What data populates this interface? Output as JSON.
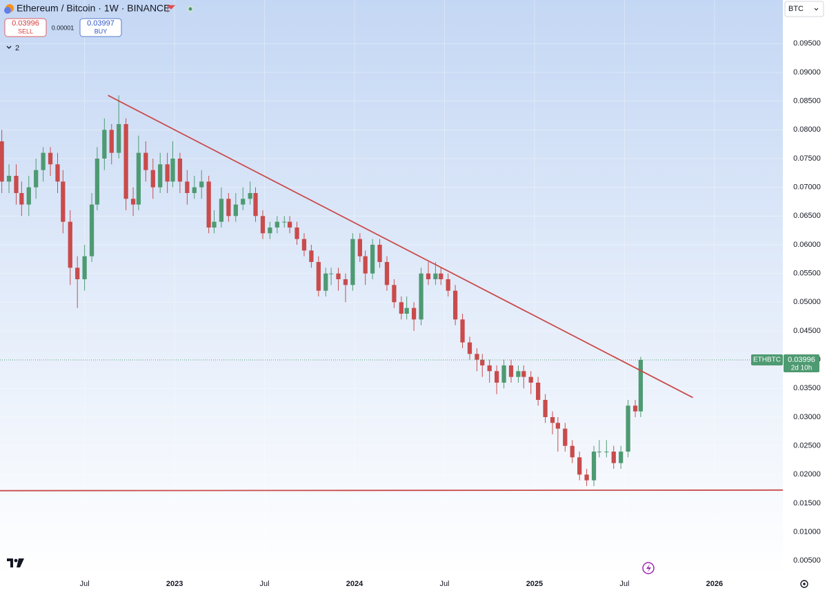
{
  "chart_data": {
    "type": "candlestick",
    "title": "Ethereum / Bitcoin · 1W · BINANCE",
    "currency": "BTC",
    "indicators_count": 2,
    "sell": {
      "price": 0.03996,
      "label": "SELL"
    },
    "spread": 1e-05,
    "buy": {
      "price": 0.03997,
      "label": "BUY"
    },
    "last_price_label": {
      "symbol": "ETHBTC",
      "price": 0.03996,
      "countdown": "2d 10h"
    },
    "up_color": "#4e9a72",
    "down_color": "#c94b4b",
    "x": [
      2022.04,
      2022.08,
      2022.12,
      2022.15,
      2022.19,
      2022.23,
      2022.27,
      2022.31,
      2022.35,
      2022.38,
      2022.42,
      2022.46,
      2022.5,
      2022.54,
      2022.57,
      2022.61,
      2022.65,
      2022.69,
      2022.73,
      2022.77,
      2022.8,
      2022.84,
      2022.88,
      2022.92,
      2022.96,
      2022.99,
      2023.03,
      2023.07,
      2023.11,
      2023.15,
      2023.19,
      2023.22,
      2023.26,
      2023.3,
      2023.34,
      2023.38,
      2023.42,
      2023.45,
      2023.49,
      2023.53,
      2023.57,
      2023.61,
      2023.64,
      2023.68,
      2023.72,
      2023.76,
      2023.8,
      2023.84,
      2023.87,
      2023.91,
      2023.95,
      2023.99,
      2024.03,
      2024.06,
      2024.1,
      2024.14,
      2024.18,
      2024.22,
      2024.26,
      2024.29,
      2024.33,
      2024.37,
      2024.41,
      2024.45,
      2024.48,
      2024.52,
      2024.56,
      2024.6,
      2024.64,
      2024.68,
      2024.71,
      2024.75,
      2024.79,
      2024.83,
      2024.87,
      2024.91,
      2024.94,
      2024.98,
      2025.02,
      2025.06,
      2025.1,
      2025.13,
      2025.17,
      2025.21,
      2025.25,
      2025.29,
      2025.33,
      2025.36,
      2025.4,
      2025.44,
      2025.48,
      2025.52,
      2025.56,
      2025.59
    ],
    "open": [
      0.078,
      0.071,
      0.072,
      0.069,
      0.067,
      0.07,
      0.073,
      0.076,
      0.074,
      0.071,
      0.064,
      0.056,
      0.054,
      0.058,
      0.067,
      0.075,
      0.08,
      0.076,
      0.081,
      0.068,
      0.067,
      0.076,
      0.073,
      0.07,
      0.074,
      0.071,
      0.075,
      0.071,
      0.069,
      0.07,
      0.071,
      0.063,
      0.064,
      0.068,
      0.065,
      0.067,
      0.068,
      0.069,
      0.065,
      0.062,
      0.063,
      0.064,
      0.064,
      0.063,
      0.061,
      0.059,
      0.057,
      0.052,
      0.055,
      0.055,
      0.054,
      0.053,
      0.061,
      0.058,
      0.055,
      0.06,
      0.057,
      0.053,
      0.05,
      0.048,
      0.049,
      0.047,
      0.055,
      0.054,
      0.055,
      0.054,
      0.052,
      0.047,
      0.043,
      0.041,
      0.04,
      0.039,
      0.038,
      0.036,
      0.039,
      0.037,
      0.038,
      0.037,
      0.036,
      0.033,
      0.03,
      0.029,
      0.028,
      0.025,
      0.023,
      0.02,
      0.019,
      0.024,
      0.024,
      0.024,
      0.022,
      0.024,
      0.032,
      0.031
    ],
    "high": [
      0.08,
      0.074,
      0.074,
      0.071,
      0.072,
      0.075,
      0.077,
      0.077,
      0.076,
      0.073,
      0.066,
      0.058,
      0.06,
      0.069,
      0.077,
      0.082,
      0.081,
      0.086,
      0.082,
      0.07,
      0.079,
      0.078,
      0.075,
      0.076,
      0.076,
      0.078,
      0.076,
      0.073,
      0.072,
      0.073,
      0.072,
      0.066,
      0.07,
      0.069,
      0.069,
      0.07,
      0.071,
      0.07,
      0.066,
      0.064,
      0.065,
      0.065,
      0.065,
      0.064,
      0.062,
      0.06,
      0.058,
      0.056,
      0.056,
      0.056,
      0.055,
      0.062,
      0.062,
      0.059,
      0.061,
      0.061,
      0.058,
      0.054,
      0.051,
      0.051,
      0.05,
      0.056,
      0.057,
      0.057,
      0.056,
      0.055,
      0.053,
      0.048,
      0.044,
      0.042,
      0.041,
      0.04,
      0.039,
      0.04,
      0.04,
      0.039,
      0.039,
      0.038,
      0.037,
      0.034,
      0.031,
      0.03,
      0.029,
      0.026,
      0.024,
      0.021,
      0.025,
      0.026,
      0.026,
      0.025,
      0.025,
      0.033,
      0.033,
      0.0405
    ],
    "low": [
      0.069,
      0.069,
      0.067,
      0.065,
      0.065,
      0.068,
      0.071,
      0.072,
      0.069,
      0.062,
      0.053,
      0.049,
      0.052,
      0.057,
      0.066,
      0.073,
      0.074,
      0.075,
      0.066,
      0.065,
      0.066,
      0.071,
      0.068,
      0.069,
      0.069,
      0.07,
      0.069,
      0.067,
      0.068,
      0.068,
      0.062,
      0.062,
      0.063,
      0.064,
      0.064,
      0.066,
      0.067,
      0.064,
      0.061,
      0.061,
      0.062,
      0.063,
      0.062,
      0.06,
      0.058,
      0.056,
      0.051,
      0.051,
      0.053,
      0.052,
      0.05,
      0.052,
      0.057,
      0.053,
      0.054,
      0.056,
      0.052,
      0.049,
      0.047,
      0.047,
      0.045,
      0.046,
      0.053,
      0.053,
      0.053,
      0.051,
      0.046,
      0.042,
      0.04,
      0.038,
      0.037,
      0.036,
      0.034,
      0.035,
      0.036,
      0.036,
      0.035,
      0.034,
      0.032,
      0.029,
      0.027,
      0.024,
      0.024,
      0.022,
      0.019,
      0.018,
      0.018,
      0.023,
      0.023,
      0.021,
      0.021,
      0.023,
      0.03,
      0.03
    ],
    "close": [
      0.071,
      0.072,
      0.069,
      0.067,
      0.07,
      0.073,
      0.076,
      0.074,
      0.071,
      0.064,
      0.056,
      0.054,
      0.058,
      0.067,
      0.075,
      0.08,
      0.076,
      0.081,
      0.068,
      0.067,
      0.076,
      0.073,
      0.07,
      0.074,
      0.071,
      0.075,
      0.071,
      0.069,
      0.07,
      0.071,
      0.063,
      0.064,
      0.068,
      0.065,
      0.067,
      0.068,
      0.069,
      0.065,
      0.062,
      0.063,
      0.064,
      0.064,
      0.063,
      0.061,
      0.059,
      0.057,
      0.052,
      0.055,
      0.055,
      0.054,
      0.053,
      0.061,
      0.058,
      0.055,
      0.06,
      0.057,
      0.053,
      0.05,
      0.048,
      0.049,
      0.047,
      0.055,
      0.054,
      0.055,
      0.054,
      0.052,
      0.047,
      0.043,
      0.041,
      0.04,
      0.039,
      0.038,
      0.036,
      0.039,
      0.037,
      0.038,
      0.037,
      0.036,
      0.033,
      0.03,
      0.029,
      0.028,
      0.025,
      0.023,
      0.02,
      0.019,
      0.024,
      0.024,
      0.024,
      0.022,
      0.024,
      0.032,
      0.031,
      0.03996
    ],
    "trendlines": [
      {
        "x": [
          2022.63,
          2025.88
        ],
        "y": [
          0.086,
          0.0334
        ],
        "color": "#c94b4b"
      },
      {
        "x": [
          2022.03,
          2026.38
        ],
        "y": [
          0.0172,
          0.0173
        ],
        "color": "#c94b4b"
      }
    ],
    "xlim": [
      2022.03,
      2026.38
    ],
    "xticks": [
      {
        "value": 2022.5,
        "label": "Jul"
      },
      2023,
      {
        "value": 2023.5,
        "label": "Jul"
      },
      2024,
      {
        "value": 2024.5,
        "label": "Jul"
      },
      2025,
      {
        "value": 2025.5,
        "label": "Jul"
      },
      2026
    ],
    "ylim": [
      0.0024,
      0.1026
    ],
    "yticks": [
      {
        "value": 0.005,
        "label": "0.00500"
      },
      {
        "value": 0.01,
        "label": "0.01000"
      },
      {
        "value": 0.015,
        "label": "0.01500"
      },
      {
        "value": 0.02,
        "label": "0.02000"
      },
      {
        "value": 0.025,
        "label": "0.02500"
      },
      {
        "value": 0.03,
        "label": "0.03000"
      },
      {
        "value": 0.035,
        "label": "0.03500"
      },
      {
        "value": 0.04,
        "label": "0.04000"
      },
      {
        "value": 0.045,
        "label": "0.04500"
      },
      {
        "value": 0.05,
        "label": "0.05000"
      },
      {
        "value": 0.055,
        "label": "0.05500"
      },
      {
        "value": 0.06,
        "label": "0.06000"
      },
      {
        "value": 0.065,
        "label": "0.06500"
      },
      {
        "value": 0.07,
        "label": "0.07000"
      },
      {
        "value": 0.075,
        "label": "0.07500"
      },
      {
        "value": 0.08,
        "label": "0.08000"
      },
      {
        "value": 0.085,
        "label": "0.08500"
      },
      {
        "value": 0.09,
        "label": "0.09000"
      },
      {
        "value": 0.095,
        "label": "0.09500"
      }
    ],
    "grid": true
  }
}
